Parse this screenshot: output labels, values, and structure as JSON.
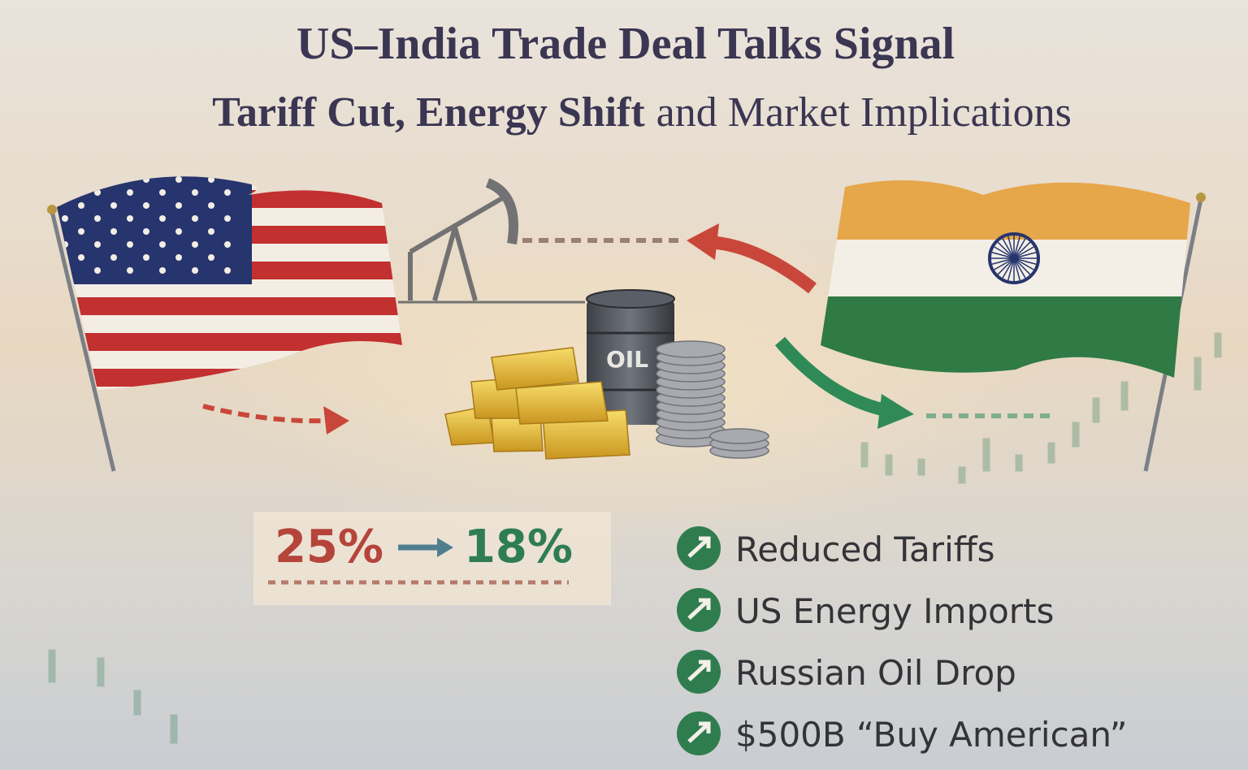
{
  "title": {
    "line1": "US–India Trade Deal Talks Signal",
    "line2": [
      "Tariff Cut, Energy Shift",
      "and Market Implications"
    ]
  },
  "barrel_label": "OIL",
  "tariff": {
    "from": "25%",
    "to": "18%"
  },
  "highlights": [
    "Reduced Tariffs",
    "US Energy Imports",
    "Russian Oil Drop",
    "$500B “Buy American”"
  ]
}
